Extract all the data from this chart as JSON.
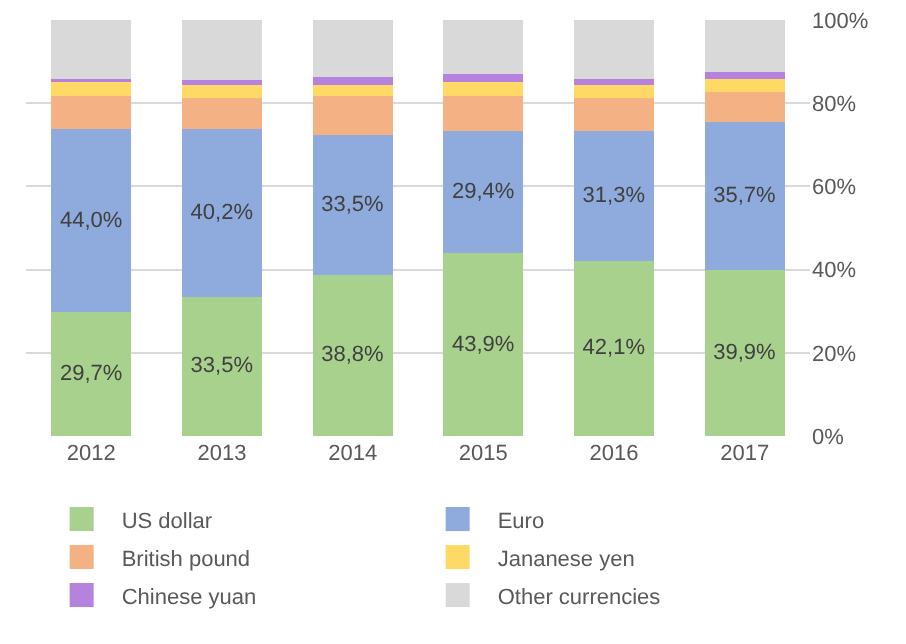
{
  "chart_data": {
    "type": "bar",
    "stacked": true,
    "categories": [
      "2012",
      "2013",
      "2014",
      "2015",
      "2016",
      "2017"
    ],
    "series": [
      {
        "name": "US dollar",
        "color": "#a9d18e",
        "values": [
          29.7,
          33.5,
          38.8,
          43.9,
          42.1,
          39.9
        ],
        "value_labels": [
          "29,7%",
          "33,5%",
          "38,8%",
          "43,9%",
          "42,1%",
          "39,9%"
        ]
      },
      {
        "name": "Euro",
        "color": "#8faadc",
        "values": [
          44.0,
          40.2,
          33.5,
          29.4,
          31.3,
          35.7
        ],
        "value_labels": [
          "44,0%",
          "40,2%",
          "33,5%",
          "29,4%",
          "31,3%",
          "35,7%"
        ]
      },
      {
        "name": "British pound",
        "color": "#f4b183",
        "values": [
          8.0,
          7.5,
          9.4,
          8.4,
          7.9,
          7.0
        ]
      },
      {
        "name": "Jananese yen",
        "color": "#ffd966",
        "values": [
          3.3,
          3.1,
          2.7,
          3.3,
          3.1,
          3.1
        ]
      },
      {
        "name": "Chinese yuan",
        "color": "#b583dd",
        "values": [
          0.7,
          1.3,
          1.8,
          2.1,
          1.3,
          1.8
        ]
      },
      {
        "name": "Other currencies",
        "color": "#d9d9d9",
        "values": [
          14.3,
          14.4,
          13.8,
          12.9,
          14.3,
          12.5
        ]
      }
    ],
    "ylim": [
      0,
      100
    ],
    "yticks": [
      {
        "value": 0,
        "label": "0%"
      },
      {
        "value": 20,
        "label": "20%"
      },
      {
        "value": 40,
        "label": "40%"
      },
      {
        "value": 60,
        "label": "60%"
      },
      {
        "value": 80,
        "label": "80%"
      },
      {
        "value": 100,
        "label": "100%"
      }
    ],
    "grid": "y",
    "legend": "bottom"
  }
}
